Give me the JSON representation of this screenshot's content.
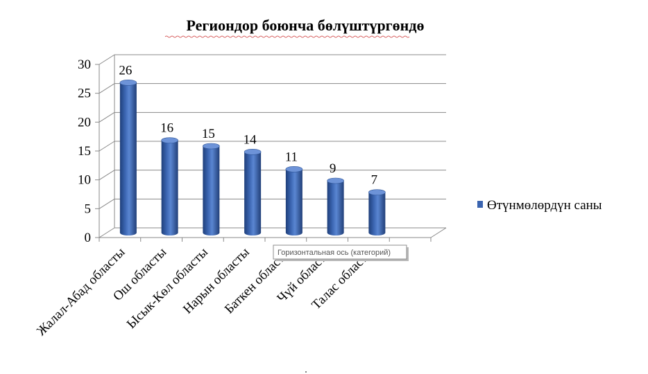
{
  "chart_data": {
    "type": "bar",
    "title": "Региондор боюнча бөлүштүргөндө",
    "categories": [
      "Жалал-Абад областы",
      "Ош областы",
      "Ысык-Көл областы",
      "Нарын областы",
      "Баткен областы",
      "Чүй областы",
      "Талас областы"
    ],
    "series": [
      {
        "name": "Өтүнмөлөрдүн саны",
        "values": [
          26,
          16,
          15,
          14,
          11,
          9,
          7
        ]
      }
    ],
    "ylim": [
      0,
      30
    ],
    "yticks": [
      "0",
      "5",
      "10",
      "15",
      "20",
      "25",
      "30"
    ],
    "grid": true,
    "legend_position": "right",
    "bar_style": "3d-cylinder",
    "bar_color": "#4472C4"
  },
  "tooltip": {
    "text": "Горизонтальная ось (категорий)"
  }
}
